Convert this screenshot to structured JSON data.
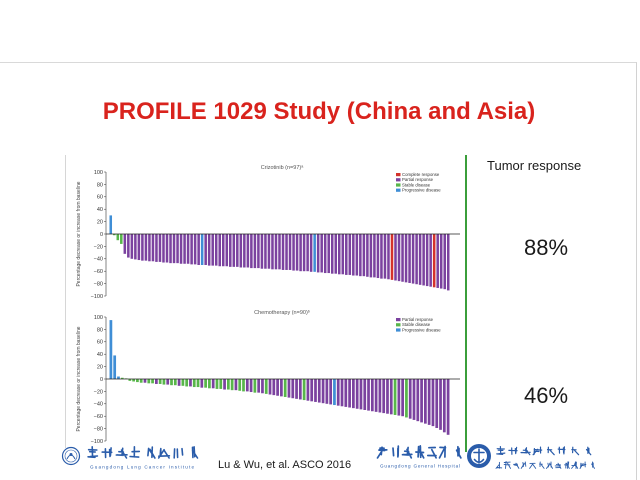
{
  "slide": {
    "title": "PROFILE 1029 Study (China and Asia)",
    "title_color": "#d9231d",
    "divider_color": "#3b9e3b"
  },
  "right_panel": {
    "heading": "Tumor response",
    "crizotinib_response_rate": "88%",
    "chemotherapy_response_rate": "46%"
  },
  "footer": {
    "citation": "Lu & Wu, et al. ASCO 2016",
    "logo_color": "#2a5caa",
    "lung_institute": {
      "icon": "institute-seal-icon",
      "name_zh": "广东省肺癌研究所",
      "name_en": "Guangdong Lung Cancer Institute"
    },
    "general_hospital": {
      "name_zh": "廣東省人民醫院",
      "name_en": "Guangdong General Hospital"
    },
    "medical_academy": {
      "icon": "academy-emblem-icon",
      "name_zh": "广东省医学科学院",
      "affiliation_zh": "华南理工大学第一附属医院"
    }
  },
  "chart_data": [
    {
      "type": "bar",
      "title": "Crizotinib (n=97)ᵃ",
      "xlabel": "",
      "ylabel": "Percentage decrease or increase from baseline",
      "ylim": [
        -100,
        100
      ],
      "yticks": [
        100,
        80,
        60,
        40,
        20,
        0,
        -20,
        -40,
        -60,
        -80,
        -100
      ],
      "grid": false,
      "legend_position": "top-right",
      "legend": [
        {
          "label": "Complete response",
          "color": "#d4322b"
        },
        {
          "label": "Partial response",
          "color": "#7b429f"
        },
        {
          "label": "Stable disease",
          "color": "#58b64a"
        },
        {
          "label": "Progressive disease",
          "color": "#3f8ed6"
        }
      ],
      "values": [
        30,
        -2,
        -10,
        -16,
        -32,
        -38,
        -40,
        -41,
        -42,
        -43,
        -43,
        -44,
        -44,
        -45,
        -45,
        -46,
        -46,
        -47,
        -47,
        -47,
        -48,
        -48,
        -48,
        -49,
        -49,
        -50,
        -50,
        -50,
        -51,
        -51,
        -51,
        -52,
        -52,
        -52,
        -53,
        -53,
        -53,
        -54,
        -54,
        -54,
        -55,
        -55,
        -55,
        -56,
        -56,
        -56,
        -57,
        -57,
        -57,
        -58,
        -58,
        -58,
        -59,
        -59,
        -60,
        -60,
        -60,
        -61,
        -61,
        -62,
        -62,
        -63,
        -63,
        -64,
        -64,
        -65,
        -65,
        -66,
        -66,
        -67,
        -67,
        -68,
        -68,
        -69,
        -70,
        -70,
        -71,
        -72,
        -72,
        -73,
        -74,
        -75,
        -76,
        -77,
        -78,
        -79,
        -80,
        -81,
        -82,
        -83,
        -84,
        -85,
        -86,
        -87,
        -88,
        -89,
        -91
      ],
      "bar_category": [
        3,
        2,
        2,
        2,
        1,
        1,
        1,
        1,
        1,
        1,
        1,
        1,
        1,
        1,
        1,
        1,
        1,
        1,
        1,
        1,
        1,
        1,
        1,
        1,
        1,
        1,
        3,
        1,
        1,
        1,
        1,
        1,
        1,
        1,
        1,
        1,
        1,
        1,
        1,
        1,
        1,
        1,
        1,
        1,
        1,
        1,
        1,
        1,
        1,
        1,
        1,
        1,
        1,
        1,
        1,
        1,
        1,
        1,
        3,
        1,
        1,
        1,
        1,
        1,
        1,
        1,
        1,
        1,
        1,
        1,
        1,
        1,
        1,
        1,
        1,
        1,
        1,
        1,
        1,
        1,
        0,
        1,
        1,
        1,
        1,
        1,
        1,
        1,
        1,
        1,
        1,
        1,
        0,
        1,
        1,
        1,
        1
      ]
    },
    {
      "type": "bar",
      "title": "Chemotherapy (n=90)ᵇ",
      "xlabel": "",
      "ylabel": "Percentage decrease or increase from baseline",
      "ylim": [
        -100,
        100
      ],
      "yticks": [
        100,
        80,
        60,
        40,
        20,
        0,
        -20,
        -40,
        -60,
        -80,
        -100
      ],
      "grid": false,
      "legend_position": "top-right",
      "legend": [
        {
          "label": "Partial response",
          "color": "#7b429f"
        },
        {
          "label": "Stable disease",
          "color": "#58b64a"
        },
        {
          "label": "Progressive disease",
          "color": "#3f8ed6"
        }
      ],
      "values": [
        95,
        38,
        4,
        2,
        1,
        -3,
        -4,
        -5,
        -6,
        -6,
        -7,
        -7,
        -8,
        -8,
        -9,
        -9,
        -10,
        -10,
        -11,
        -11,
        -12,
        -12,
        -13,
        -13,
        -14,
        -14,
        -15,
        -15,
        -16,
        -16,
        -17,
        -17,
        -18,
        -18,
        -19,
        -20,
        -20,
        -21,
        -22,
        -22,
        -23,
        -24,
        -25,
        -26,
        -27,
        -28,
        -29,
        -30,
        -31,
        -32,
        -33,
        -34,
        -35,
        -36,
        -37,
        -38,
        -39,
        -40,
        -41,
        -42,
        -43,
        -44,
        -45,
        -46,
        -47,
        -48,
        -49,
        -50,
        -51,
        -52,
        -53,
        -54,
        -55,
        -56,
        -57,
        -58,
        -59,
        -60,
        -62,
        -64,
        -66,
        -68,
        -70,
        -72,
        -74,
        -76,
        -79,
        -82,
        -86,
        -90
      ],
      "bar_category": [
        2,
        2,
        2,
        1,
        1,
        1,
        1,
        1,
        1,
        0,
        1,
        1,
        0,
        1,
        1,
        0,
        1,
        1,
        0,
        1,
        1,
        0,
        1,
        1,
        0,
        1,
        1,
        0,
        1,
        1,
        0,
        1,
        1,
        0,
        1,
        1,
        0,
        0,
        1,
        0,
        0,
        1,
        0,
        0,
        0,
        0,
        1,
        0,
        0,
        0,
        0,
        1,
        0,
        0,
        0,
        0,
        0,
        0,
        0,
        2,
        0,
        0,
        0,
        0,
        0,
        0,
        0,
        0,
        0,
        0,
        0,
        0,
        0,
        0,
        0,
        1,
        0,
        0,
        1,
        0,
        0,
        0,
        0,
        0,
        0,
        0,
        0,
        0,
        0,
        0
      ]
    }
  ]
}
